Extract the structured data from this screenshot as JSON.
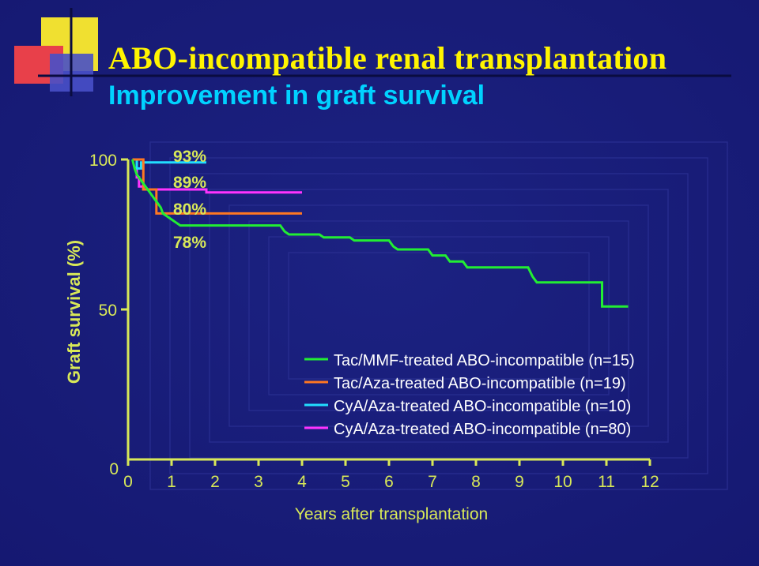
{
  "slide": {
    "title": "ABO-incompatible renal transplantation",
    "subtitle": "Improvement in graft survival",
    "colors": {
      "background": "#1a1d7a",
      "title": "#fff500",
      "subtitle": "#00d2ff",
      "axis_text": "#d8e858",
      "legend_text": "#ffffff"
    }
  },
  "chart_data": {
    "type": "line",
    "step": true,
    "xlabel": "Years after transplantation",
    "ylabel": "Graft survival (%)",
    "xlim": [
      0,
      12
    ],
    "ylim": [
      0,
      100
    ],
    "x_ticks": [
      0,
      1,
      2,
      3,
      4,
      5,
      6,
      7,
      8,
      9,
      10,
      11,
      12
    ],
    "y_ticks": [
      0,
      50,
      100
    ],
    "grid": false,
    "legend_position": "bottom-right",
    "annotations": [
      "93%",
      "89%",
      "80%",
      "78%"
    ],
    "series": [
      {
        "name": "Tac/MMF-treated ABO-incompatible (n=15)",
        "color": "#22ee33",
        "points": [
          [
            0.1,
            100
          ],
          [
            0.15,
            97
          ],
          [
            0.2,
            95
          ],
          [
            0.3,
            93
          ],
          [
            0.4,
            91
          ],
          [
            0.5,
            89
          ],
          [
            0.6,
            87
          ],
          [
            0.75,
            84
          ],
          [
            0.8,
            82
          ],
          [
            0.9,
            81
          ],
          [
            1.0,
            80
          ],
          [
            1.1,
            79
          ],
          [
            1.2,
            78
          ],
          [
            3.5,
            78
          ],
          [
            3.6,
            76
          ],
          [
            3.7,
            75
          ],
          [
            4.4,
            75
          ],
          [
            4.5,
            74
          ],
          [
            5.1,
            74
          ],
          [
            5.2,
            73
          ],
          [
            6.0,
            73
          ],
          [
            6.1,
            71
          ],
          [
            6.2,
            70
          ],
          [
            6.9,
            70
          ],
          [
            7.0,
            68
          ],
          [
            7.3,
            68
          ],
          [
            7.4,
            66
          ],
          [
            7.7,
            66
          ],
          [
            7.8,
            64
          ],
          [
            9.2,
            64
          ],
          [
            9.3,
            61
          ],
          [
            9.4,
            59
          ],
          [
            10.9,
            59
          ],
          [
            10.9,
            51
          ],
          [
            11.5,
            51
          ]
        ]
      },
      {
        "name": "Tac/Aza-treated ABO-incompatible (n=19)",
        "color": "#ff7722",
        "points": [
          [
            0.1,
            100
          ],
          [
            0.35,
            100
          ],
          [
            0.35,
            90
          ],
          [
            0.65,
            90
          ],
          [
            0.65,
            82
          ],
          [
            4,
            82
          ]
        ]
      },
      {
        "name": "CyA/Aza-treated ABO-incompatible (n=10)",
        "color": "#22ddff",
        "points": [
          [
            0.1,
            100
          ],
          [
            0.2,
            100
          ],
          [
            0.2,
            97
          ],
          [
            0.3,
            97
          ],
          [
            0.3,
            99
          ],
          [
            1.8,
            99
          ]
        ]
      },
      {
        "name": "CyA/Aza-treated ABO-incompatible (n=80)",
        "color": "#ff33ff",
        "points": [
          [
            0.1,
            100
          ],
          [
            0.2,
            100
          ],
          [
            0.2,
            94
          ],
          [
            0.25,
            94
          ],
          [
            0.25,
            91
          ],
          [
            0.35,
            91
          ],
          [
            0.35,
            90
          ],
          [
            1.8,
            90
          ],
          [
            1.8,
            89
          ],
          [
            4,
            89
          ]
        ]
      }
    ]
  }
}
